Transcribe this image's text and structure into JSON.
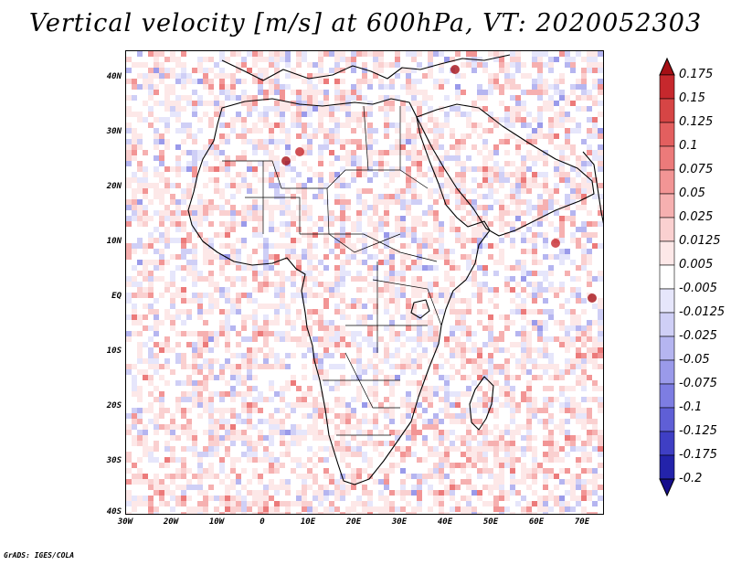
{
  "title": "Vertical velocity [m/s] at 600hPa, VT: 2020052303",
  "credit": "GrADS: IGES/COLA",
  "map": {
    "lon_range": [
      -30,
      75
    ],
    "lat_range": [
      -40,
      45
    ],
    "lat_ticks": [
      "40N",
      "30N",
      "20N",
      "10N",
      "EQ",
      "10S",
      "20S",
      "30S",
      "40S"
    ],
    "lon_ticks": [
      "30W",
      "20W",
      "10W",
      "0",
      "10E",
      "20E",
      "30E",
      "40E",
      "50E",
      "60E",
      "70E"
    ]
  },
  "colorbar": {
    "labels": [
      "0.175",
      "0.15",
      "0.125",
      "0.1",
      "0.075",
      "0.05",
      "0.025",
      "0.0125",
      "0.005",
      "-0.005",
      "-0.0125",
      "-0.025",
      "-0.05",
      "-0.075",
      "-0.1",
      "-0.125",
      "-0.175",
      "-0.2"
    ],
    "colors": [
      "#a50f15",
      "#c6282d",
      "#d64545",
      "#e35f5f",
      "#ec7a7a",
      "#f29595",
      "#f6b0b0",
      "#fad0d0",
      "#fde8e8",
      "#ffffff",
      "#e6e6fb",
      "#cfcff6",
      "#b5b5f0",
      "#9a9aea",
      "#7d7de2",
      "#5f5fd6",
      "#3f3fc4",
      "#2323aa",
      "#160e8c"
    ]
  },
  "colors": {
    "upward": "#c62828",
    "downward": "#2323aa",
    "coast": "#000000"
  }
}
